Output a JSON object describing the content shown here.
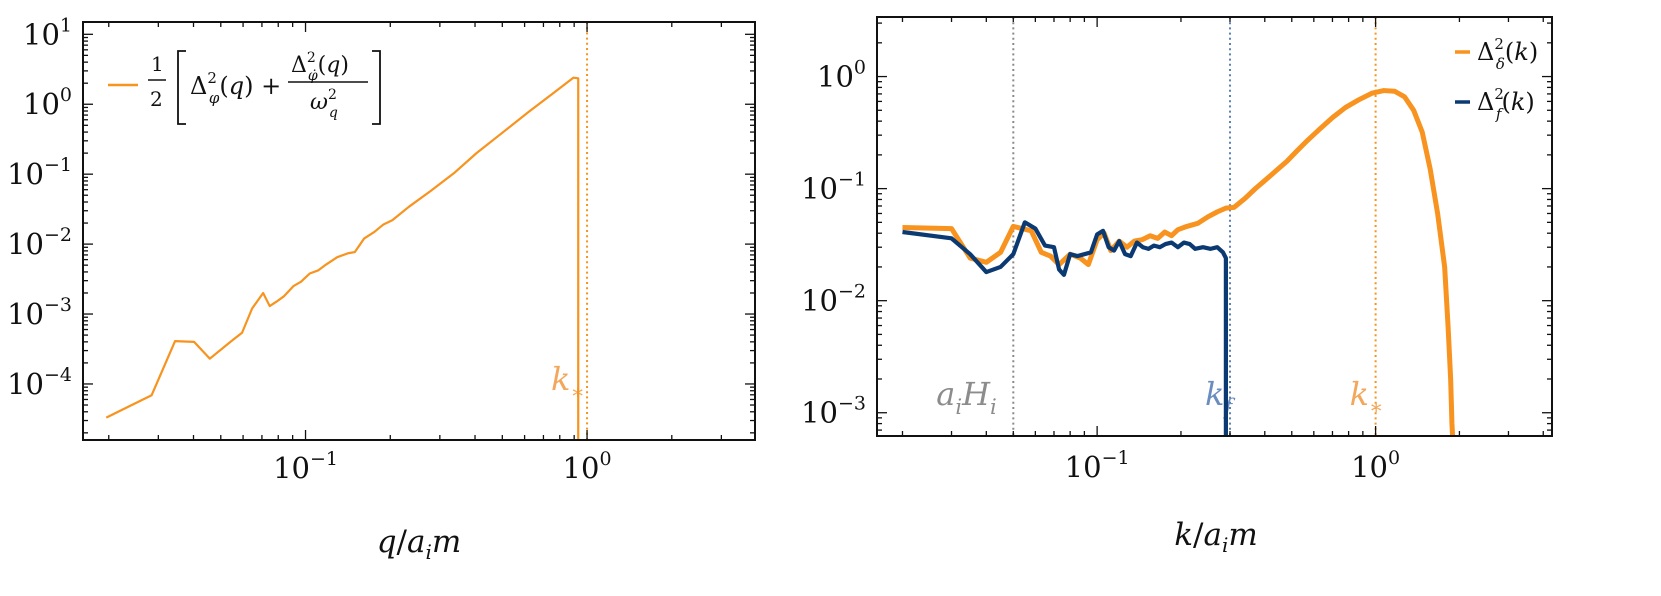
{
  "colors": {
    "orange": "#F7931E",
    "navy": "#0B3A73",
    "gray_line": "#8A8A8A",
    "gray_label": "#8C8C8C",
    "blue_line": "#5A82B4",
    "blue_label": "#6A8DBF",
    "orange_label": "#F2A75A"
  },
  "chart_data": [
    {
      "type": "line",
      "xscale": "log",
      "yscale": "log",
      "xlabel": "q/a_i m",
      "ylabel": "",
      "xlim": [
        0.0162,
        3.95
      ],
      "ylim": [
        1.58e-05,
        15
      ],
      "x_ticks": [
        {
          "value": 0.1,
          "label": "10^{-1}"
        },
        {
          "value": 1,
          "label": "10^{0}"
        }
      ],
      "y_ticks": [
        {
          "value": 0.0001,
          "label": "10^{-4}"
        },
        {
          "value": 0.001,
          "label": "10^{-3}"
        },
        {
          "value": 0.01,
          "label": "10^{-2}"
        },
        {
          "value": 0.1,
          "label": "10^{-1}"
        },
        {
          "value": 1,
          "label": "10^{0}"
        },
        {
          "value": 10,
          "label": "10^{1}"
        }
      ],
      "legend": {
        "placement": "top-left",
        "entries": [
          "½ [Δ²_φ(q) + Δ²_φ̇(q)/ω²_q]"
        ]
      },
      "vlines": [
        {
          "x": 1.0,
          "label": "k_*",
          "color": "orange"
        }
      ],
      "series": [
        {
          "name": "½ [Δ²_φ(q) + Δ²_φ̇(q)/ω²_q]",
          "color": "orange",
          "x": [
            0.0196,
            0.0284,
            0.0344,
            0.0402,
            0.0457,
            0.0545,
            0.0595,
            0.0646,
            0.0707,
            0.0746,
            0.0788,
            0.0839,
            0.0905,
            0.0964,
            0.1035,
            0.1108,
            0.1183,
            0.1296,
            0.1416,
            0.1497,
            0.1614,
            0.1758,
            0.1888,
            0.2036,
            0.2325,
            0.2774,
            0.3363,
            0.4049,
            0.5076,
            0.6211,
            0.7518,
            0.8952,
            0.9304,
            0.9304
          ],
          "y": [
            3.3e-05,
            6.9e-05,
            0.00041,
            0.0004,
            0.00023,
            0.00041,
            0.00054,
            0.0012,
            0.002,
            0.0013,
            0.0015,
            0.0018,
            0.0025,
            0.0029,
            0.0038,
            0.0042,
            0.0051,
            0.0065,
            0.0074,
            0.0077,
            0.012,
            0.015,
            0.019,
            0.022,
            0.034,
            0.057,
            0.103,
            0.2,
            0.41,
            0.78,
            1.4,
            2.4,
            2.35,
            1.58e-05
          ]
        }
      ]
    },
    {
      "type": "line",
      "xscale": "log",
      "yscale": "log",
      "xlabel": "k/a_i m",
      "ylabel": "",
      "xlim": [
        0.0162,
        4.3
      ],
      "ylim": [
        0.00062,
        3.4
      ],
      "x_ticks": [
        {
          "value": 0.1,
          "label": "10^{-1}"
        },
        {
          "value": 1,
          "label": "10^{0}"
        }
      ],
      "y_ticks": [
        {
          "value": 0.001,
          "label": "10^{-3}"
        },
        {
          "value": 0.01,
          "label": "10^{-2}"
        },
        {
          "value": 0.1,
          "label": "10^{-1}"
        },
        {
          "value": 1,
          "label": "10^{0}"
        }
      ],
      "legend": {
        "placement": "top-right",
        "entries": [
          "Δ²_δ(k)",
          "Δ²_f(k)"
        ]
      },
      "vlines": [
        {
          "x": 0.05,
          "label": "a_i H_i",
          "color": "gray"
        },
        {
          "x": 0.3,
          "label": "k_f",
          "color": "blue"
        },
        {
          "x": 1.0,
          "label": "k_*",
          "color": "orange"
        }
      ],
      "series": [
        {
          "name": "Δ²_δ(k)",
          "color": "orange",
          "x": [
            0.02,
            0.03,
            0.035,
            0.04,
            0.045,
            0.05,
            0.058,
            0.063,
            0.068,
            0.073,
            0.08,
            0.087,
            0.093,
            0.1,
            0.106,
            0.112,
            0.12,
            0.128,
            0.136,
            0.145,
            0.155,
            0.165,
            0.175,
            0.185,
            0.195,
            0.21,
            0.23,
            0.25,
            0.27,
            0.29,
            0.31,
            0.34,
            0.37,
            0.4,
            0.44,
            0.48,
            0.52,
            0.57,
            0.63,
            0.7,
            0.78,
            0.87,
            0.97,
            1.07,
            1.17,
            1.27,
            1.37,
            1.47,
            1.57,
            1.67,
            1.77,
            1.82,
            1.86,
            1.88,
            1.89
          ],
          "y": [
            0.045,
            0.044,
            0.024,
            0.022,
            0.027,
            0.046,
            0.042,
            0.027,
            0.025,
            0.021,
            0.026,
            0.024,
            0.021,
            0.035,
            0.04,
            0.028,
            0.034,
            0.03,
            0.034,
            0.035,
            0.038,
            0.036,
            0.041,
            0.038,
            0.043,
            0.046,
            0.049,
            0.056,
            0.062,
            0.067,
            0.068,
            0.082,
            0.1,
            0.118,
            0.145,
            0.175,
            0.215,
            0.27,
            0.34,
            0.43,
            0.53,
            0.62,
            0.71,
            0.75,
            0.74,
            0.66,
            0.5,
            0.32,
            0.15,
            0.06,
            0.02,
            0.006,
            0.002,
            0.0008,
            0.00062
          ]
        },
        {
          "name": "Δ²_f(k)",
          "color": "navy",
          "x": [
            0.02,
            0.03,
            0.035,
            0.04,
            0.045,
            0.05,
            0.055,
            0.06,
            0.065,
            0.07,
            0.073,
            0.076,
            0.08,
            0.085,
            0.09,
            0.095,
            0.1,
            0.105,
            0.11,
            0.115,
            0.12,
            0.126,
            0.132,
            0.139,
            0.146,
            0.153,
            0.16,
            0.168,
            0.176,
            0.185,
            0.195,
            0.205,
            0.215,
            0.225,
            0.24,
            0.255,
            0.27,
            0.283,
            0.29,
            0.29
          ],
          "y": [
            0.041,
            0.036,
            0.026,
            0.018,
            0.02,
            0.026,
            0.05,
            0.044,
            0.031,
            0.03,
            0.019,
            0.017,
            0.026,
            0.025,
            0.026,
            0.027,
            0.039,
            0.042,
            0.03,
            0.028,
            0.034,
            0.026,
            0.025,
            0.033,
            0.03,
            0.029,
            0.031,
            0.03,
            0.032,
            0.033,
            0.03,
            0.033,
            0.032,
            0.029,
            0.03,
            0.029,
            0.03,
            0.027,
            0.024,
            0.00062
          ]
        }
      ]
    }
  ]
}
